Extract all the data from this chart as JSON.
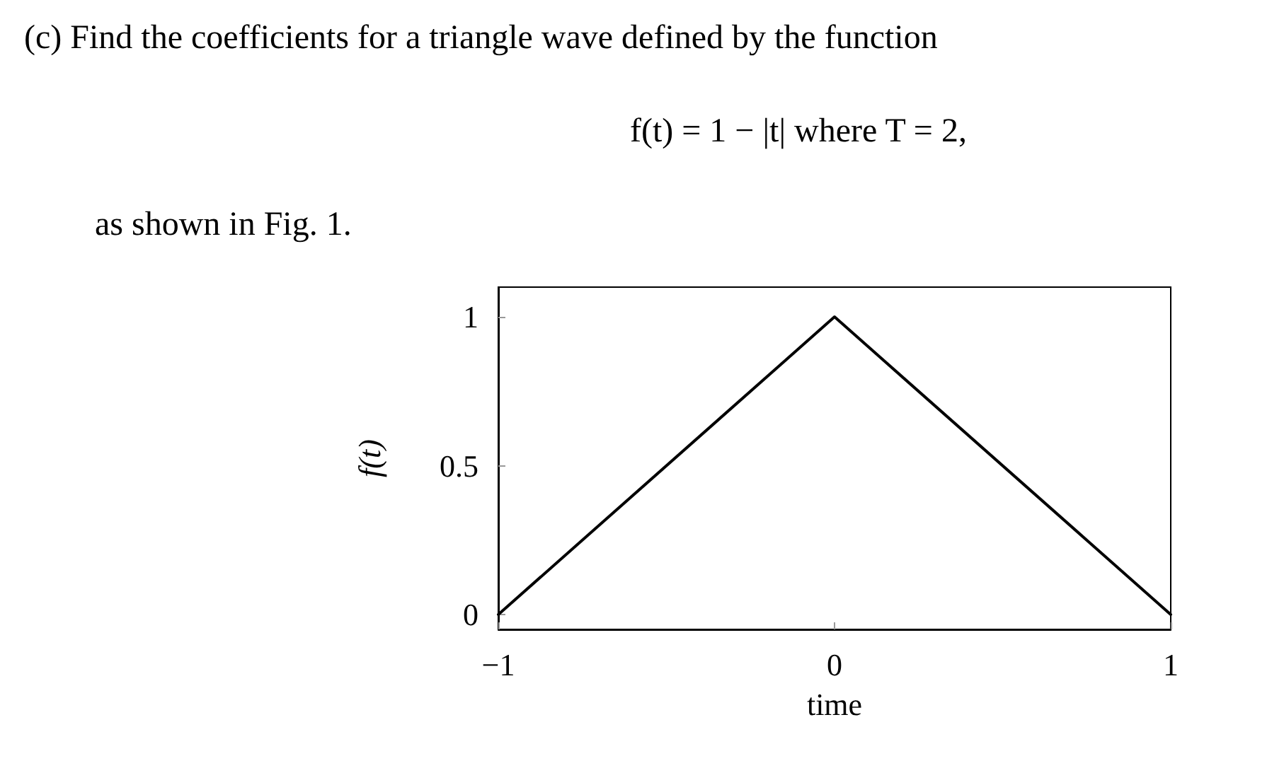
{
  "chart_data": {
    "type": "line",
    "title": "(c) Find the coefficients for a triangle wave defined by the function",
    "subtitle": "f(t) = 1 − |t| where T = 2,",
    "annotations": [
      "as shown in Fig. 1."
    ],
    "xlabel": "time",
    "ylabel": "f(t)",
    "x": [
      -1,
      0,
      1
    ],
    "series": [
      {
        "color": "#000000",
        "values": [
          0,
          1,
          0
        ]
      }
    ],
    "xlim": [
      -1,
      1
    ],
    "xticks": [
      {
        "value": -1,
        "label": "−1"
      },
      0,
      1
    ],
    "ylim": [
      -0.05,
      1.1
    ],
    "yticks": [
      0,
      0.5,
      1
    ],
    "grid": false,
    "marker": "none",
    "line_style": "solid"
  }
}
